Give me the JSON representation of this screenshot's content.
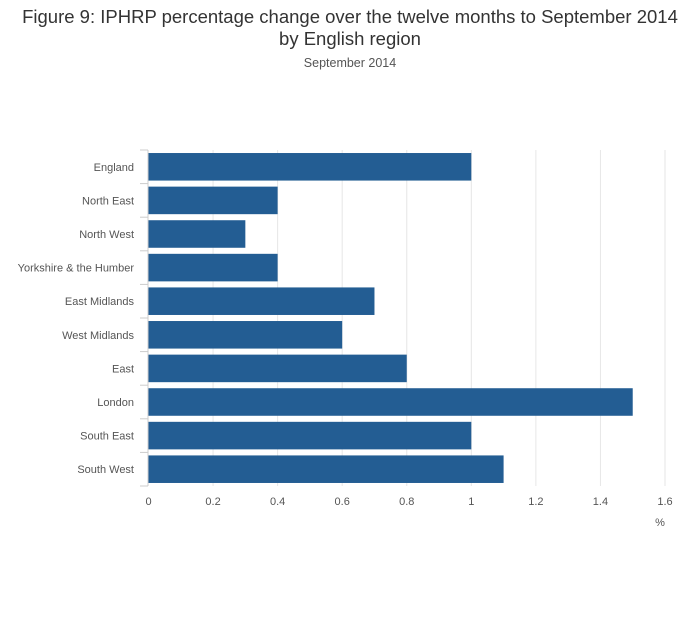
{
  "chart_data": {
    "type": "bar",
    "orientation": "horizontal",
    "title": "Figure 9: IPHRP percentage change over the twelve months to September 2014 by English region",
    "subtitle": "September 2014",
    "categories": [
      "England",
      "North East",
      "North West",
      "Yorkshire & the Humber",
      "East Midlands",
      "West Midlands",
      "East",
      "London",
      "South East",
      "South West"
    ],
    "values": [
      1.0,
      0.4,
      0.3,
      0.4,
      0.7,
      0.6,
      0.8,
      1.5,
      1.0,
      1.1
    ],
    "xlabel": "%",
    "ylabel": "",
    "xlim": [
      0,
      1.6
    ],
    "xticks": [
      "0",
      "0.2",
      "0.4",
      "0.6",
      "0.8",
      "1",
      "1.2",
      "1.4",
      "1.6"
    ],
    "grid": true,
    "legend": "none",
    "colors": {
      "bar": "#235d93",
      "grid": "#e6e6e6",
      "axis": "#cccccc",
      "text": "#555555"
    }
  }
}
